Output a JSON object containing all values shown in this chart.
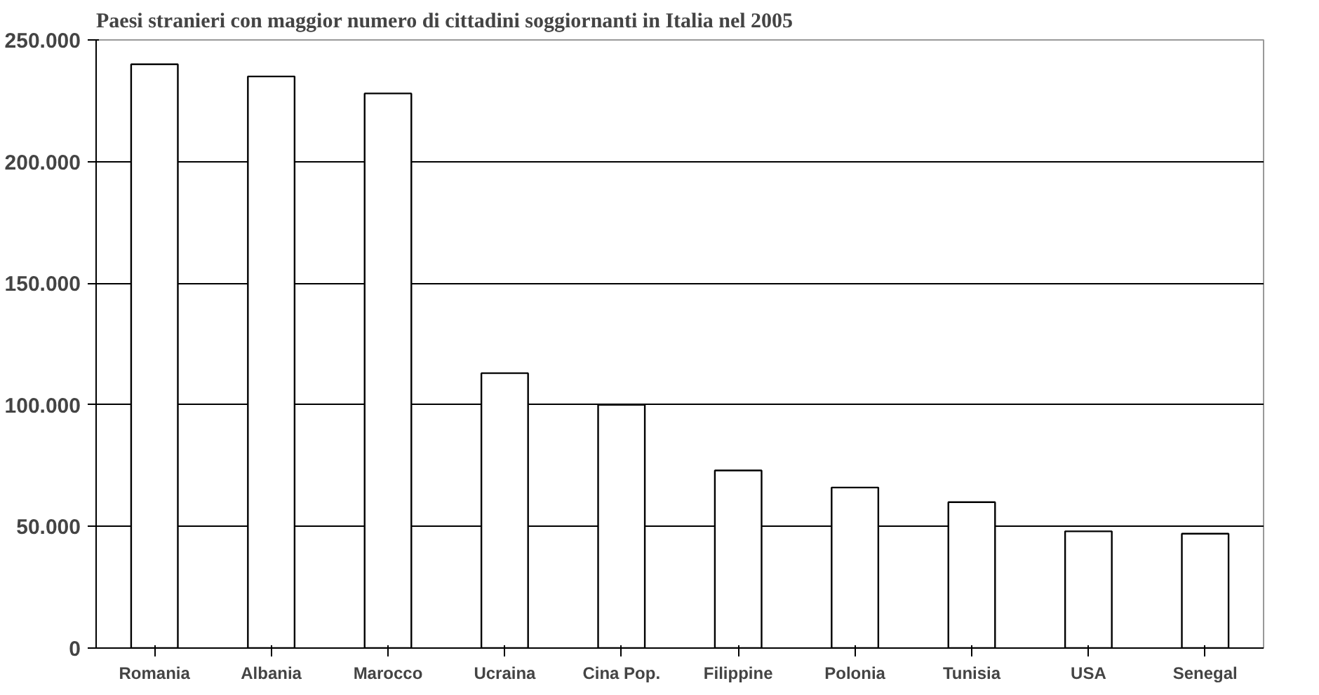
{
  "chart_data": {
    "type": "bar",
    "title": "Paesi stranieri con maggior numero di cittadini soggiornanti in Italia nel 2005",
    "categories": [
      "Romania",
      "Albania",
      "Marocco",
      "Ucraina",
      "Cina Pop.",
      "Filippine",
      "Polonia",
      "Tunisia",
      "USA",
      "Senegal"
    ],
    "values": [
      240000,
      235000,
      228000,
      113000,
      100000,
      73000,
      66000,
      60000,
      48000,
      47000
    ],
    "color": "#ffffff",
    "ylim": [
      0,
      250000
    ],
    "yticks": [
      {
        "value": 0,
        "label": "0"
      },
      {
        "value": 50000,
        "label": "50.000"
      },
      {
        "value": 100000,
        "label": "100.000"
      },
      {
        "value": 150000,
        "label": "150.000"
      },
      {
        "value": 200000,
        "label": "200.000"
      },
      {
        "value": 250000,
        "label": "250.000"
      }
    ],
    "grid": "y"
  }
}
